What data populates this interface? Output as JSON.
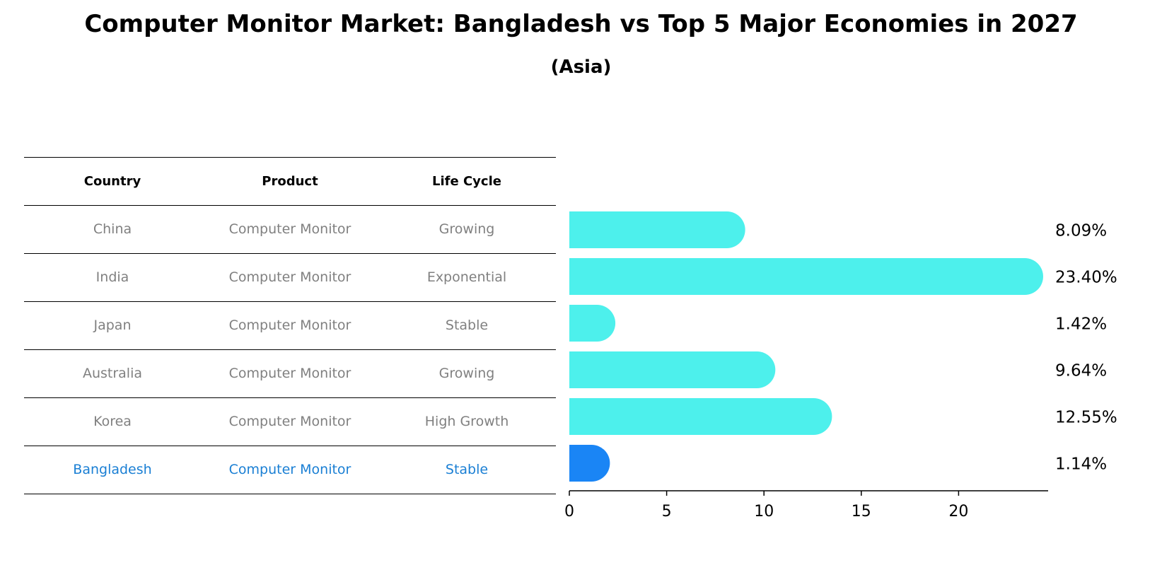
{
  "title": "Computer Monitor Market: Bangladesh vs Top 5 Major Economies in 2027",
  "subtitle": "(Asia)",
  "table": {
    "headers": [
      "Country",
      "Product",
      "Life Cycle"
    ],
    "rows": [
      [
        "China",
        "Computer Monitor",
        "Growing"
      ],
      [
        "India",
        "Computer Monitor",
        "Exponential"
      ],
      [
        "Japan",
        "Computer Monitor",
        "Stable"
      ],
      [
        "Australia",
        "Computer Monitor",
        "Growing"
      ],
      [
        "Korea",
        "Computer Monitor",
        "High Growth"
      ],
      [
        "Bangladesh",
        "Computer Monitor",
        "Stable"
      ]
    ],
    "highlight_row": 5
  },
  "chart_data": {
    "type": "bar",
    "orientation": "horizontal",
    "categories": [
      "China",
      "India",
      "Japan",
      "Australia",
      "Korea",
      "Bangladesh"
    ],
    "values": [
      8.09,
      23.4,
      1.42,
      9.64,
      12.55,
      1.14
    ],
    "value_labels": [
      "8.09%",
      "23.40%",
      "1.42%",
      "9.64%",
      "12.55%",
      "1.14%"
    ],
    "xlim": [
      0,
      24.6
    ],
    "xticks": [
      0,
      5,
      10,
      15,
      20
    ],
    "colors": {
      "default": "#4df0ec",
      "highlight": "#1a85f5"
    },
    "highlight_index": 5,
    "grid": false
  }
}
